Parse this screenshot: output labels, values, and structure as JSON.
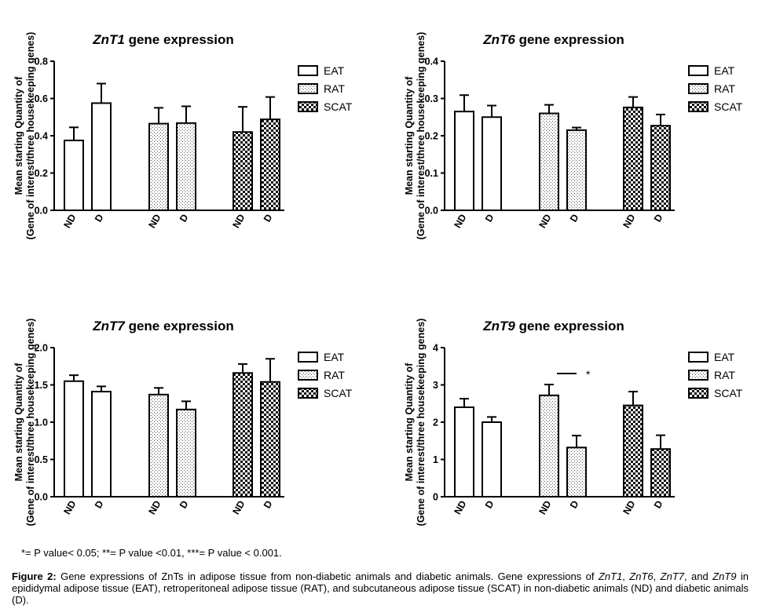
{
  "chart_data": [
    {
      "type": "bar",
      "title": "ZnT1 gene expression",
      "title_gene": "ZnT1",
      "title_rest": " gene expression",
      "ylabel_line1": "Mean starting Quantity of",
      "ylabel_line2": "(Gene of interest/three housekeeping genes)",
      "ylim": [
        0,
        0.8
      ],
      "yticks": [
        "0.0",
        "0.2",
        "0.4",
        "0.6",
        "0.8"
      ],
      "ytick_values": [
        0,
        0.2,
        0.4,
        0.6,
        0.8
      ],
      "categories": [
        "ND",
        "D",
        "ND",
        "D",
        "ND",
        "D"
      ],
      "tissues": [
        "EAT",
        "EAT",
        "RAT",
        "RAT",
        "SCAT",
        "SCAT"
      ],
      "values": [
        0.375,
        0.575,
        0.465,
        0.468,
        0.42,
        0.488
      ],
      "errors": [
        0.07,
        0.105,
        0.085,
        0.09,
        0.135,
        0.12
      ],
      "legend": [
        "EAT",
        "RAT",
        "SCAT"
      ],
      "legend_position": "top-right"
    },
    {
      "type": "bar",
      "title": "ZnT6 gene expression",
      "title_gene": "ZnT6",
      "title_rest": " gene expression",
      "ylabel_line1": "Mean starting Quantity of",
      "ylabel_line2": "(Gene of interest/three housekeeping genes)",
      "ylim": [
        0,
        0.4
      ],
      "yticks": [
        "0.0",
        "0.1",
        "0.2",
        "0.3",
        "0.4"
      ],
      "ytick_values": [
        0,
        0.1,
        0.2,
        0.3,
        0.4
      ],
      "categories": [
        "ND",
        "D",
        "ND",
        "D",
        "ND",
        "D"
      ],
      "tissues": [
        "EAT",
        "EAT",
        "RAT",
        "RAT",
        "SCAT",
        "SCAT"
      ],
      "values": [
        0.265,
        0.25,
        0.26,
        0.215,
        0.276,
        0.227
      ],
      "errors": [
        0.044,
        0.031,
        0.023,
        0.007,
        0.028,
        0.03
      ],
      "legend": [
        "EAT",
        "RAT",
        "SCAT"
      ],
      "legend_position": "top-right"
    },
    {
      "type": "bar",
      "title": "ZnT7 gene expression",
      "title_gene": "ZnT7",
      "title_rest": " gene expression",
      "ylabel_line1": "Mean starting Quantity of",
      "ylabel_line2": "(Gene of interest/three housekeeping genes)",
      "ylim": [
        0,
        2.0
      ],
      "yticks": [
        "0.0",
        "0.5",
        "1.0",
        "1.5",
        "2.0"
      ],
      "ytick_values": [
        0,
        0.5,
        1.0,
        1.5,
        2.0
      ],
      "categories": [
        "ND",
        "D",
        "ND",
        "D",
        "ND",
        "D"
      ],
      "tissues": [
        "EAT",
        "EAT",
        "RAT",
        "RAT",
        "SCAT",
        "SCAT"
      ],
      "values": [
        1.55,
        1.41,
        1.37,
        1.17,
        1.66,
        1.54
      ],
      "errors": [
        0.08,
        0.07,
        0.09,
        0.11,
        0.12,
        0.31
      ],
      "legend": [
        "EAT",
        "RAT",
        "SCAT"
      ],
      "legend_position": "top-right"
    },
    {
      "type": "bar",
      "title": "ZnT9 gene expression",
      "title_gene": "ZnT9",
      "title_rest": " gene expression",
      "ylabel_line1": "Mean starting Quantity of",
      "ylabel_line2": "(Gene of interest/three housekeeping genes)",
      "ylim": [
        0,
        4
      ],
      "yticks": [
        "0",
        "1",
        "2",
        "3",
        "4"
      ],
      "ytick_values": [
        0,
        1,
        2,
        3,
        4
      ],
      "categories": [
        "ND",
        "D",
        "ND",
        "D",
        "ND",
        "D"
      ],
      "tissues": [
        "EAT",
        "EAT",
        "RAT",
        "RAT",
        "SCAT",
        "SCAT"
      ],
      "values": [
        2.4,
        2.0,
        2.72,
        1.32,
        2.45,
        1.28
      ],
      "errors": [
        0.23,
        0.14,
        0.29,
        0.32,
        0.37,
        0.37
      ],
      "legend": [
        "EAT",
        "RAT",
        "SCAT"
      ],
      "legend_position": "top-right",
      "significance": {
        "between": [
          2,
          3
        ],
        "label": "*"
      }
    }
  ],
  "footnote": "*= P value< 0.05; **= P value <0.01, ***= P value < 0.001.",
  "caption": {
    "label": "Figure 2:",
    "text1": " Gene expressions of ZnTs in adipose tissue from non-diabetic animals and diabetic animals. Gene expressions of ",
    "g1": "ZnT1",
    "sep1": ", ",
    "g2": "ZnT6",
    "sep2": ", ",
    "g3": "ZnT7",
    "sep3": ", and ",
    "g4": "ZnT9",
    "text2": " in epididymal adipose tissue (EAT), retroperitoneal adipose tissue (RAT), and subcutaneous adipose tissue (SCAT) in non-diabetic animals (ND) and diabetic animals (D)."
  }
}
